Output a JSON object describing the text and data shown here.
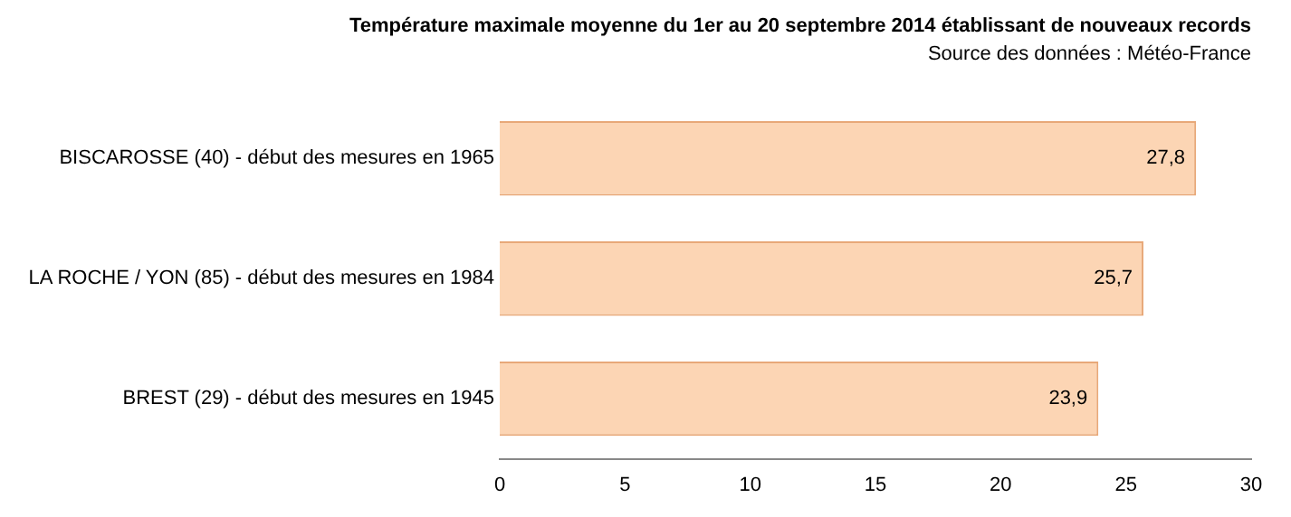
{
  "chart_data": {
    "type": "bar",
    "orientation": "horizontal",
    "title": "Température maximale moyenne du 1er au 20 septembre 2014 établissant de nouveaux records",
    "subtitle": "Source des données : Météo-France",
    "categories": [
      "BISCAROSSE (40) - début des mesures en 1965",
      "LA ROCHE / YON (85) - début des mesures en 1984",
      "BREST (29) - début des mesures en 1945"
    ],
    "values": [
      27.8,
      25.7,
      23.9
    ],
    "value_labels": [
      "27,8",
      "25,7",
      "23,9"
    ],
    "color": "#fcd5b4",
    "xlim": [
      0,
      30
    ],
    "xticks": [
      0,
      5,
      10,
      15,
      20,
      25,
      30
    ],
    "grid": false,
    "legend": false
  }
}
